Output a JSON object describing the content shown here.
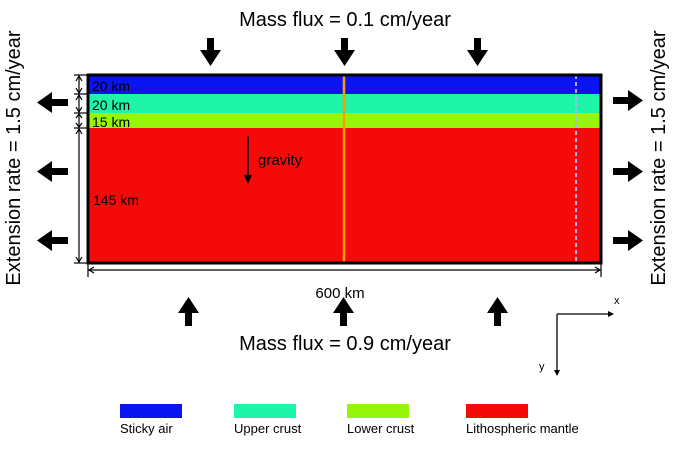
{
  "top_flux": "Mass flux = 0.1 cm/year",
  "bottom_flux": "Mass flux = 0.9 cm/year",
  "left_extension": "Extension rate = 1.5 cm/year",
  "right_extension": "Extension rate = 1.5 cm/year",
  "gravity": "gravity",
  "width_label": "600 km",
  "axes": {
    "x": "x",
    "y": "y"
  },
  "layers": [
    {
      "thickness": "20 km",
      "name": "Sticky air",
      "color": "#0a14f0"
    },
    {
      "thickness": "20 km",
      "name": "Upper crust",
      "color": "#1ef5a8"
    },
    {
      "thickness": "15 km",
      "name": "Lower crust",
      "color": "#96f50a"
    },
    {
      "thickness": "145 km",
      "name": "Lithospheric mantle",
      "color": "#f50a0a"
    }
  ],
  "colors": {
    "center_line": "#f5a000",
    "dashed_line": "#b0b0f0",
    "frame": "#000000"
  }
}
